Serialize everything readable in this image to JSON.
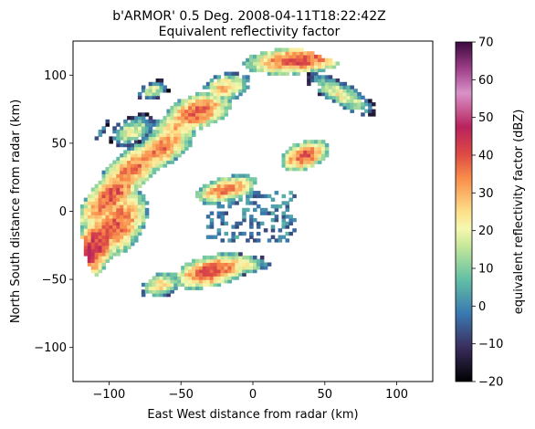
{
  "chart_data": {
    "type": "heatmap",
    "title_line1": "b'ARMOR' 0.5 Deg. 2008-04-11T18:22:42Z",
    "title_line2": "Equivalent reflectivity factor",
    "xlabel": "East West distance from radar (km)",
    "ylabel": "North South distance from radar (km)",
    "xlim": [
      -125,
      125
    ],
    "ylim": [
      -125,
      125
    ],
    "x_ticks": [
      -100,
      -50,
      0,
      50,
      100
    ],
    "y_ticks": [
      -100,
      -50,
      0,
      50,
      100
    ],
    "x_tick_labels": [
      "−100",
      "−50",
      "0",
      "50",
      "100"
    ],
    "y_tick_labels": [
      "−100",
      "−50",
      "0",
      "50",
      "100"
    ],
    "colorbar": {
      "label": "equivalent reflectivity factor (dBZ)",
      "range": [
        -20,
        70
      ],
      "ticks": [
        -20,
        -10,
        0,
        10,
        20,
        30,
        40,
        50,
        60,
        70
      ],
      "tick_labels": [
        "−20",
        "−10",
        "0",
        "10",
        "20",
        "30",
        "40",
        "50",
        "60",
        "70"
      ],
      "colormap": "spectral-like"
    },
    "echo_regions": [
      {
        "x": -110,
        "y": -30,
        "dbz": 42
      },
      {
        "x": -95,
        "y": 10,
        "dbz": 38
      },
      {
        "x": -80,
        "y": 30,
        "dbz": 35
      },
      {
        "x": -30,
        "y": -45,
        "dbz": 40
      },
      {
        "x": -5,
        "y": 5,
        "dbz": 5
      },
      {
        "x": 30,
        "y": 110,
        "dbz": 40
      },
      {
        "x": -40,
        "y": 70,
        "dbz": 38
      },
      {
        "x": 35,
        "y": 40,
        "dbz": 40
      }
    ]
  }
}
